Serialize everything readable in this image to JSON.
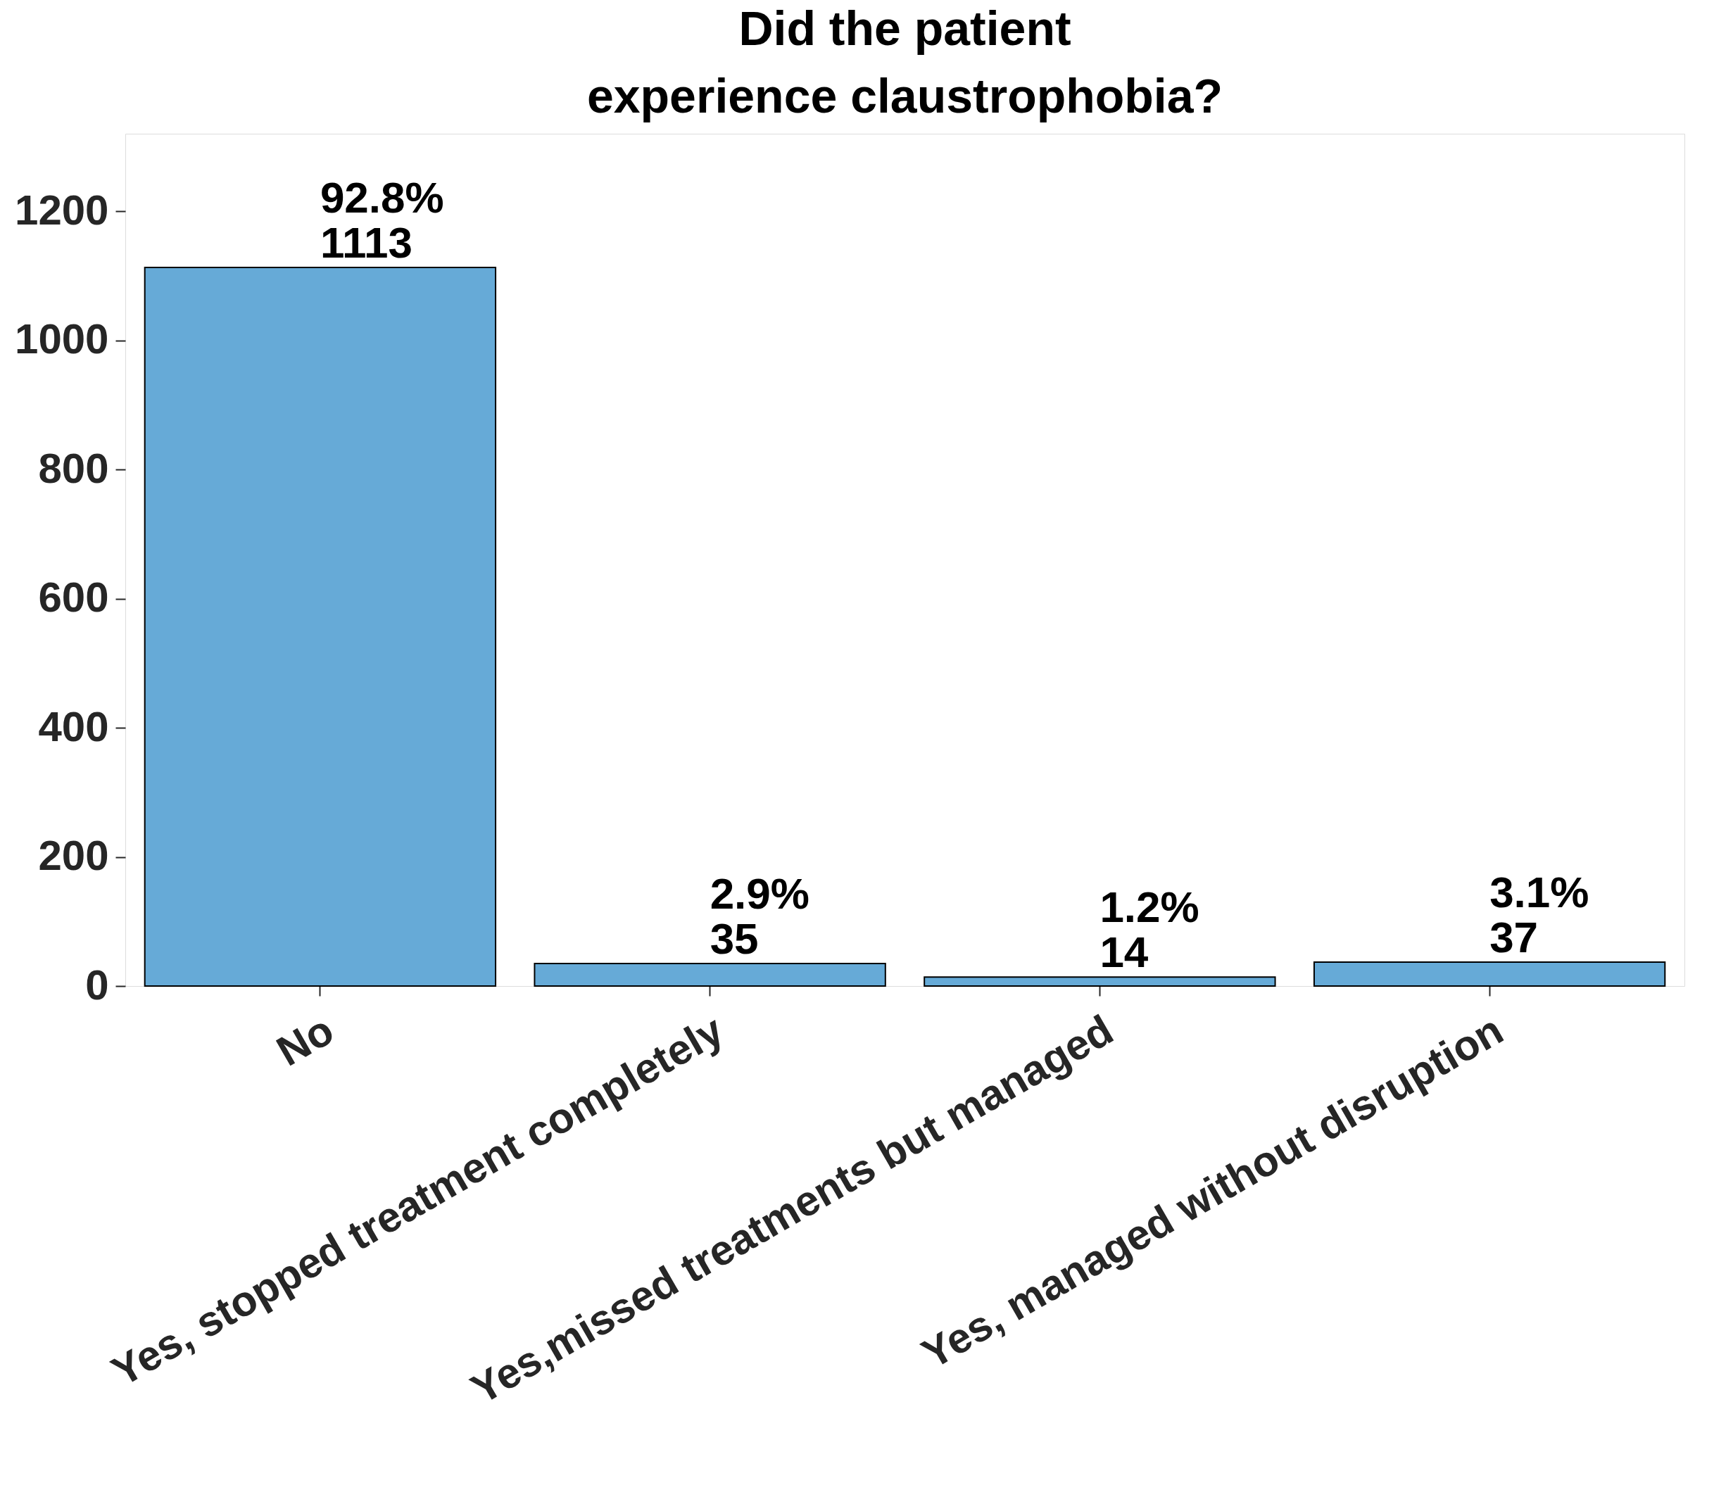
{
  "chart_data": {
    "type": "bar",
    "title": "Did the patient\nexperience claustrophobia?",
    "categories": [
      "No",
      "Yes, stopped treatment completely",
      "Yes,missed treatments but managed",
      "Yes, managed without disruption"
    ],
    "values": [
      1113,
      35,
      14,
      37
    ],
    "color": "#66aad7",
    "value_labels": [
      "92.8%\n1113",
      "2.9%\n35",
      "1.2%\n14",
      "3.1%\n37"
    ],
    "ylim": [
      0,
      1320
    ],
    "yticks": [
      0,
      200,
      400,
      600,
      800,
      1000,
      1200
    ],
    "grid": false
  }
}
